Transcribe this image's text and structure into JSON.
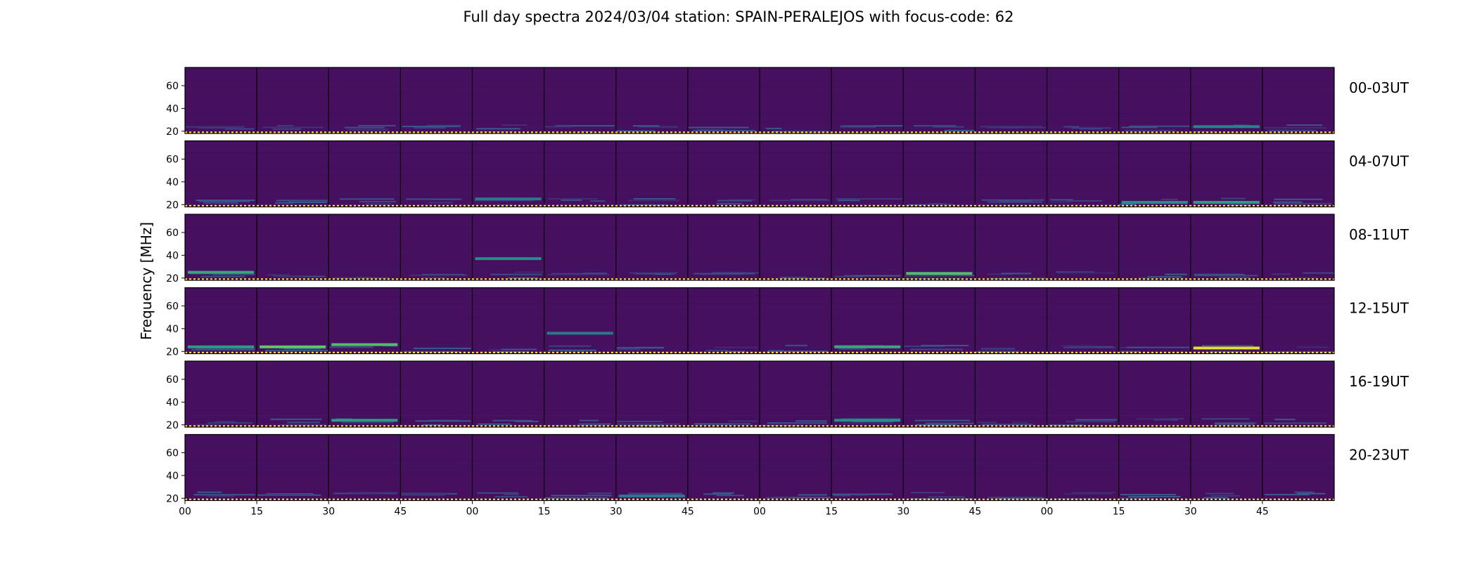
{
  "chart_data": {
    "type": "heatmap",
    "title": "Full day spectra 2024/03/04 station: SPAIN-PERALEJOS with focus-code: 62",
    "ylabel": "Frequency [MHz]",
    "xlabel": "",
    "rows": [
      "00-03UT",
      "04-07UT",
      "08-11UT",
      "12-15UT",
      "16-19UT",
      "20-23UT"
    ],
    "panels_per_row": 16,
    "minutes_per_panel": 15,
    "yticks": [
      20,
      40,
      60
    ],
    "ylim": [
      18,
      76
    ],
    "xtick_labels": [
      "00",
      "15",
      "30",
      "45",
      "00",
      "15",
      "30",
      "45",
      "00",
      "15",
      "30",
      "45",
      "00",
      "15",
      "30",
      "45"
    ],
    "colormap": [
      "#440154",
      "#3b528b",
      "#21918c",
      "#5ec962",
      "#fde725"
    ],
    "background_color": "#46105f",
    "baseline_color": "#fde725",
    "notable_emissions": [
      {
        "row": 0,
        "panel": 14,
        "freq_mhz": 24,
        "level": 0.45
      },
      {
        "row": 1,
        "panel": 4,
        "freq_mhz": 25,
        "level": 0.4
      },
      {
        "row": 1,
        "panel": 13,
        "freq_mhz": 22,
        "level": 0.5
      },
      {
        "row": 1,
        "panel": 14,
        "freq_mhz": 22,
        "level": 0.55
      },
      {
        "row": 2,
        "panel": 0,
        "freq_mhz": 25,
        "level": 0.6
      },
      {
        "row": 2,
        "panel": 4,
        "freq_mhz": 37,
        "level": 0.5
      },
      {
        "row": 2,
        "panel": 10,
        "freq_mhz": 24,
        "level": 0.7
      },
      {
        "row": 3,
        "panel": 0,
        "freq_mhz": 24,
        "level": 0.55
      },
      {
        "row": 3,
        "panel": 1,
        "freq_mhz": 24,
        "level": 0.75
      },
      {
        "row": 3,
        "panel": 2,
        "freq_mhz": 26,
        "level": 0.7
      },
      {
        "row": 3,
        "panel": 5,
        "freq_mhz": 36,
        "level": 0.4
      },
      {
        "row": 3,
        "panel": 9,
        "freq_mhz": 24,
        "level": 0.6
      },
      {
        "row": 3,
        "panel": 14,
        "freq_mhz": 23,
        "level": 0.95
      },
      {
        "row": 4,
        "panel": 2,
        "freq_mhz": 24,
        "level": 0.55
      },
      {
        "row": 4,
        "panel": 9,
        "freq_mhz": 24,
        "level": 0.5
      },
      {
        "row": 5,
        "panel": 6,
        "freq_mhz": 22,
        "level": 0.4
      }
    ]
  }
}
